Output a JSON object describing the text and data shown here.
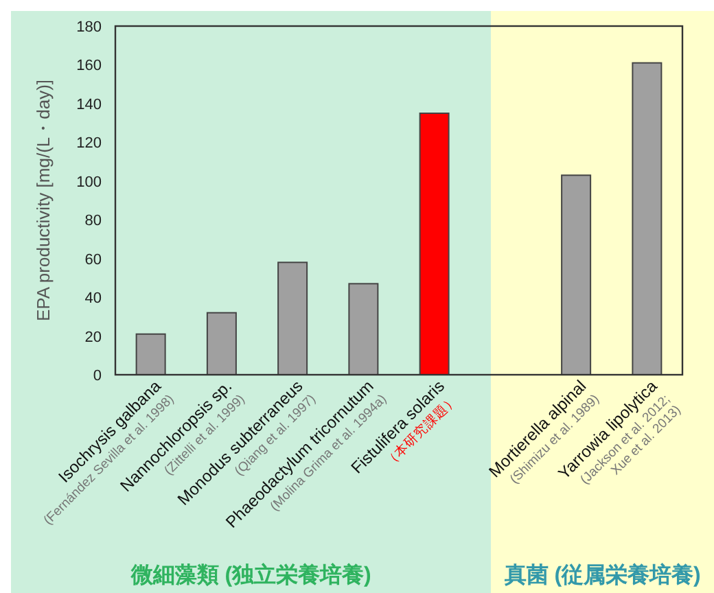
{
  "chart_data": {
    "type": "bar",
    "ylabel": "EPA productivity [mg/(L・day)]",
    "categories": [
      "Isochrysis galbana\n(Fernández Sevilla et al. 1998)",
      "Nannochloropsis sp.\n(Zittelli et al. 1999)",
      "Monodus subterraneus\n(Qiang et al. 1997)",
      "Phaeodactylum tricornutum\n(Molina Grima et al. 1994a)",
      "Fistulifera solaris\n（本研究課題）",
      null,
      "Mortierella alpinal\n(Shimizu et al. 1989)",
      "Yarrowia lipolytica\n(Jackson et al. 2012;\nXue et al. 2013)"
    ],
    "values": [
      21,
      32,
      58,
      47,
      135,
      null,
      103,
      161
    ],
    "color": "#a0a0a0",
    "colors": [
      "#a0a0a0",
      "#a0a0a0",
      "#a0a0a0",
      "#a0a0a0",
      "#ff0000",
      null,
      "#a0a0a0",
      "#a0a0a0"
    ],
    "ylim": [
      0,
      180
    ],
    "yticks": [
      0,
      20,
      40,
      60,
      80,
      100,
      120,
      140,
      160,
      180
    ],
    "annotations": [
      "微細藻類 (独立栄養培養)",
      "真菌 (従属栄養培養)"
    ]
  }
}
